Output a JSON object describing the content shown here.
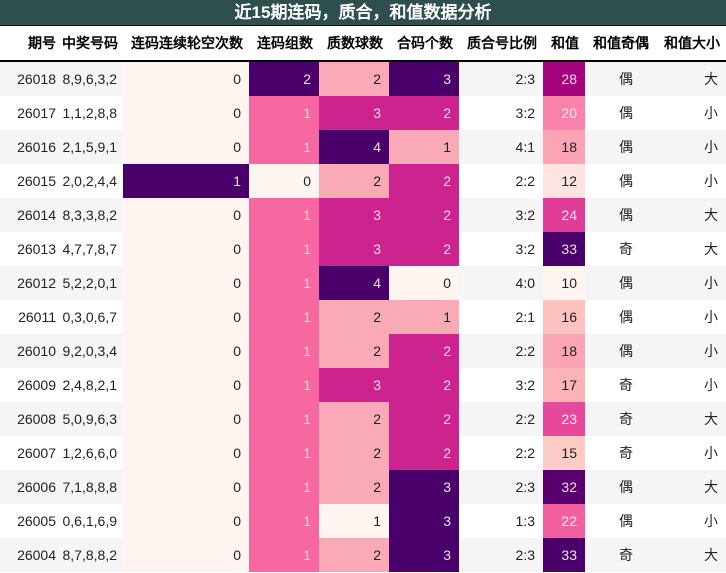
{
  "title": "近15期连码，质合，和值数据分析",
  "colors": {
    "title_bg": "#2f4f4f",
    "scale": [
      "#fff5f0",
      "#fde0dd",
      "#fcc5c0",
      "#fa9fb5",
      "#f768a1",
      "#dd3497",
      "#ae017e",
      "#7a0177",
      "#49006a"
    ]
  },
  "columns": [
    {
      "key": "period",
      "label": "期号"
    },
    {
      "key": "numbers",
      "label": "中奖号码"
    },
    {
      "key": "gap",
      "label": "连码连续轮空次数"
    },
    {
      "key": "consec",
      "label": "连码组数"
    },
    {
      "key": "prime",
      "label": "质数球数"
    },
    {
      "key": "composite",
      "label": "合码个数"
    },
    {
      "key": "ratio",
      "label": "质合号比例"
    },
    {
      "key": "sum",
      "label": "和值"
    },
    {
      "key": "parity",
      "label": "和值奇偶"
    },
    {
      "key": "size",
      "label": "和值大小"
    }
  ],
  "rows": [
    {
      "period": "26018",
      "numbers": "8,9,6,3,2",
      "gap": "0",
      "consec": "2",
      "prime": "2",
      "composite": "3",
      "ratio": "2:3",
      "sum": "28",
      "parity": "偶",
      "size": "大"
    },
    {
      "period": "26017",
      "numbers": "1,1,2,8,8",
      "gap": "0",
      "consec": "1",
      "prime": "3",
      "composite": "2",
      "ratio": "3:2",
      "sum": "20",
      "parity": "偶",
      "size": "小"
    },
    {
      "period": "26016",
      "numbers": "2,1,5,9,1",
      "gap": "0",
      "consec": "1",
      "prime": "4",
      "composite": "1",
      "ratio": "4:1",
      "sum": "18",
      "parity": "偶",
      "size": "小"
    },
    {
      "period": "26015",
      "numbers": "2,0,2,4,4",
      "gap": "1",
      "consec": "0",
      "prime": "2",
      "composite": "2",
      "ratio": "2:2",
      "sum": "12",
      "parity": "偶",
      "size": "小"
    },
    {
      "period": "26014",
      "numbers": "8,3,3,8,2",
      "gap": "0",
      "consec": "1",
      "prime": "3",
      "composite": "2",
      "ratio": "3:2",
      "sum": "24",
      "parity": "偶",
      "size": "大"
    },
    {
      "period": "26013",
      "numbers": "4,7,7,8,7",
      "gap": "0",
      "consec": "1",
      "prime": "3",
      "composite": "2",
      "ratio": "3:2",
      "sum": "33",
      "parity": "奇",
      "size": "大"
    },
    {
      "period": "26012",
      "numbers": "5,2,2,0,1",
      "gap": "0",
      "consec": "1",
      "prime": "4",
      "composite": "0",
      "ratio": "4:0",
      "sum": "10",
      "parity": "偶",
      "size": "小"
    },
    {
      "period": "26011",
      "numbers": "0,3,0,6,7",
      "gap": "0",
      "consec": "1",
      "prime": "2",
      "composite": "1",
      "ratio": "2:1",
      "sum": "16",
      "parity": "偶",
      "size": "小"
    },
    {
      "period": "26010",
      "numbers": "9,2,0,3,4",
      "gap": "0",
      "consec": "1",
      "prime": "2",
      "composite": "2",
      "ratio": "2:2",
      "sum": "18",
      "parity": "偶",
      "size": "小"
    },
    {
      "period": "26009",
      "numbers": "2,4,8,2,1",
      "gap": "0",
      "consec": "1",
      "prime": "3",
      "composite": "2",
      "ratio": "3:2",
      "sum": "17",
      "parity": "奇",
      "size": "小"
    },
    {
      "period": "26008",
      "numbers": "5,0,9,6,3",
      "gap": "0",
      "consec": "1",
      "prime": "2",
      "composite": "2",
      "ratio": "2:2",
      "sum": "23",
      "parity": "奇",
      "size": "大"
    },
    {
      "period": "26007",
      "numbers": "1,2,6,6,0",
      "gap": "0",
      "consec": "1",
      "prime": "2",
      "composite": "2",
      "ratio": "2:2",
      "sum": "15",
      "parity": "奇",
      "size": "小"
    },
    {
      "period": "26006",
      "numbers": "7,1,8,8,8",
      "gap": "0",
      "consec": "1",
      "prime": "2",
      "composite": "3",
      "ratio": "2:3",
      "sum": "32",
      "parity": "偶",
      "size": "大"
    },
    {
      "period": "26005",
      "numbers": "0,6,1,6,9",
      "gap": "0",
      "consec": "1",
      "prime": "1",
      "composite": "3",
      "ratio": "1:3",
      "sum": "22",
      "parity": "偶",
      "size": "小"
    },
    {
      "period": "26004",
      "numbers": "8,7,8,8,2",
      "gap": "0",
      "consec": "1",
      "prime": "2",
      "composite": "3",
      "ratio": "2:3",
      "sum": "33",
      "parity": "奇",
      "size": "大"
    }
  ],
  "cell_colors": {
    "gap": [
      "#fff5f0",
      "#fff5f0",
      "#fff5f0",
      "#49006a",
      "#fff5f0",
      "#fff5f0",
      "#fff5f0",
      "#fff5f0",
      "#fff5f0",
      "#fff5f0",
      "#fff5f0",
      "#fff5f0",
      "#fff5f0",
      "#fff5f0",
      "#fff5f0"
    ],
    "consec": [
      "#49006a",
      "#f768a1",
      "#f768a1",
      "#fff5f0",
      "#f768a1",
      "#f768a1",
      "#f768a1",
      "#f768a1",
      "#f768a1",
      "#f768a1",
      "#f768a1",
      "#f768a1",
      "#f768a1",
      "#f768a1",
      "#f768a1"
    ],
    "prime": [
      "#faa9b6",
      "#cd238e",
      "#49006a",
      "#faa9b6",
      "#cd238e",
      "#cd238e",
      "#49006a",
      "#faa9b6",
      "#faa9b6",
      "#cd238e",
      "#faa9b6",
      "#faa9b6",
      "#faa9b6",
      "#fff5f0",
      "#faa9b6"
    ],
    "composite": [
      "#49006a",
      "#cd238e",
      "#faa9b6",
      "#cd238e",
      "#cd238e",
      "#cd238e",
      "#fff5f0",
      "#faa9b6",
      "#cd238e",
      "#cd238e",
      "#cd238e",
      "#cd238e",
      "#49006a",
      "#49006a",
      "#49006a"
    ],
    "sum": [
      "#a3037c",
      "#f882aa",
      "#fba4b4",
      "#fee4e1",
      "#e03d99",
      "#49006a",
      "#fff5f0",
      "#fcc3c0",
      "#fba4b4",
      "#fbb3b8",
      "#e8489c",
      "#fdcbc5",
      "#5a006e",
      "#f260a0",
      "#49006a"
    ]
  },
  "cell_text_colors": {
    "gap": [
      "#222",
      "#222",
      "#222",
      "#f0e0f0",
      "#222",
      "#222",
      "#222",
      "#222",
      "#222",
      "#222",
      "#222",
      "#222",
      "#222",
      "#222",
      "#222"
    ],
    "consec": [
      "#f0e0f0",
      "#fbd0e0",
      "#fbd0e0",
      "#222",
      "#fbd0e0",
      "#fbd0e0",
      "#fbd0e0",
      "#fbd0e0",
      "#fbd0e0",
      "#fbd0e0",
      "#fbd0e0",
      "#fbd0e0",
      "#fbd0e0",
      "#fbd0e0",
      "#fbd0e0"
    ],
    "prime": [
      "#222",
      "#f5d5e8",
      "#f0e0f0",
      "#222",
      "#f5d5e8",
      "#f5d5e8",
      "#f0e0f0",
      "#222",
      "#222",
      "#f5d5e8",
      "#222",
      "#222",
      "#222",
      "#222",
      "#222"
    ],
    "composite": [
      "#f0e0f0",
      "#f5d5e8",
      "#222",
      "#f5d5e8",
      "#f5d5e8",
      "#f5d5e8",
      "#222",
      "#222",
      "#f5d5e8",
      "#f5d5e8",
      "#f5d5e8",
      "#f5d5e8",
      "#f0e0f0",
      "#f0e0f0",
      "#f0e0f0"
    ],
    "sum": [
      "#f5d5e8",
      "#fde8f0",
      "#222",
      "#222",
      "#fde8f0",
      "#f0e0f0",
      "#222",
      "#222",
      "#222",
      "#222",
      "#fde8f0",
      "#222",
      "#f0e0f0",
      "#fde8f0",
      "#f0e0f0"
    ]
  }
}
